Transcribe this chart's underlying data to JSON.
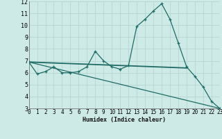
{
  "xlabel": "Humidex (Indice chaleur)",
  "background_color": "#ceeae7",
  "grid_color": "#b8d8d4",
  "line_color": "#1e6b65",
  "xlim": [
    0,
    23
  ],
  "ylim": [
    3,
    12
  ],
  "xticks": [
    0,
    1,
    2,
    3,
    4,
    5,
    6,
    7,
    8,
    9,
    10,
    11,
    12,
    13,
    14,
    15,
    16,
    17,
    18,
    19,
    20,
    21,
    22,
    23
  ],
  "yticks": [
    3,
    4,
    5,
    6,
    7,
    8,
    9,
    10,
    11,
    12
  ],
  "series1_x": [
    0,
    1,
    2,
    3,
    4,
    5,
    6,
    7,
    8,
    9,
    10,
    11,
    12,
    13,
    14,
    15,
    16,
    17,
    18,
    19,
    20,
    21,
    22,
    23
  ],
  "series1_y": [
    6.9,
    5.9,
    6.1,
    6.5,
    6.0,
    6.0,
    6.1,
    6.5,
    7.8,
    7.0,
    6.5,
    6.3,
    6.6,
    9.9,
    10.5,
    11.2,
    11.8,
    10.5,
    8.5,
    6.5,
    5.7,
    4.8,
    3.6,
    3.0
  ],
  "series2_x": [
    0,
    19
  ],
  "series2_y": [
    6.9,
    6.4
  ],
  "series3_x": [
    0,
    23
  ],
  "series3_y": [
    6.9,
    3.0
  ],
  "xlabel_fontsize": 6,
  "tick_fontsize": 5.5
}
